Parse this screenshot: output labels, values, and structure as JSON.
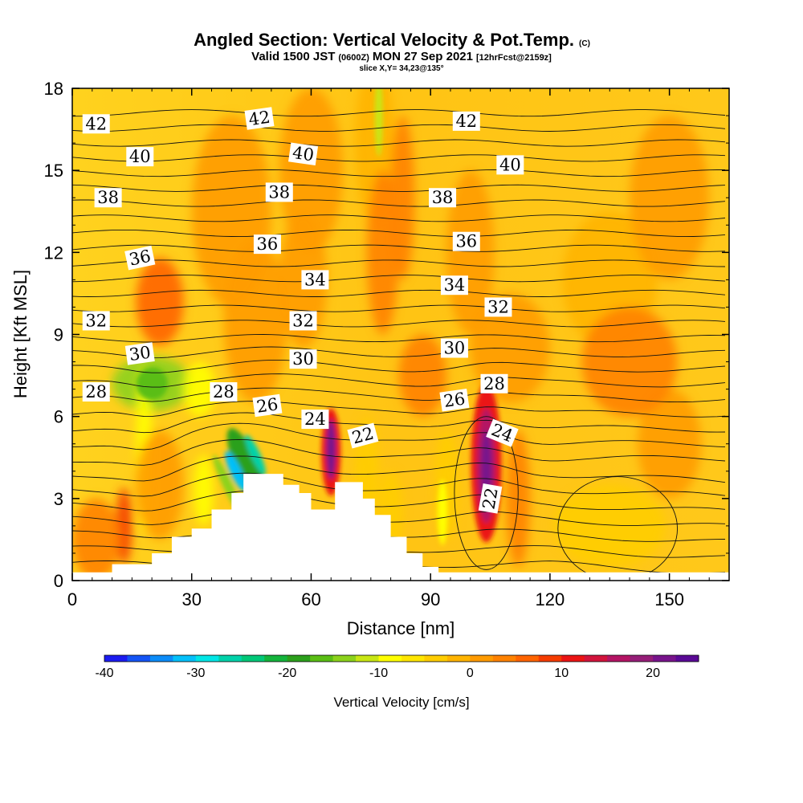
{
  "title": {
    "main": "Angled Section: Vertical Velocity & Pot.Temp.",
    "main_suffix": "(C)",
    "valid_prefix": "Valid 1500 JST",
    "valid_utc": "(0600Z)",
    "valid_date": "MON 27 Sep 2021",
    "forecast": "[12hrFcst@2159z]",
    "slice": "slice X,Y= 34,23@135°"
  },
  "chart_data": {
    "type": "heatmap",
    "xlabel": "Distance [nm]",
    "ylabel": "Height [Kft MSL]",
    "xlim": [
      0,
      165
    ],
    "ylim": [
      0,
      18
    ],
    "x_ticks": [
      0,
      30,
      60,
      90,
      120,
      150
    ],
    "y_ticks": [
      0,
      3,
      6,
      9,
      12,
      15,
      18
    ],
    "colorbar": {
      "title": "Vertical Velocity [cm/s]",
      "min": -40,
      "max": 25,
      "step": 2.5,
      "tick_values": [
        -40,
        -30,
        -20,
        -10,
        0,
        10,
        20
      ],
      "colors": [
        "#1c1cf0",
        "#1454f5",
        "#0c8cf8",
        "#04c0fa",
        "#00e6e6",
        "#00d2aa",
        "#00c878",
        "#14b43c",
        "#2ca01c",
        "#5abe14",
        "#8cd21c",
        "#c8e614",
        "#ffff00",
        "#ffe600",
        "#ffcd00",
        "#ffb400",
        "#ff9b00",
        "#ff8200",
        "#ff6400",
        "#f53c00",
        "#eb1414",
        "#d2143c",
        "#b41464",
        "#961e78",
        "#78148c",
        "#5a0a96"
      ]
    },
    "terrain_kft": [
      [
        0,
        0.3
      ],
      [
        10,
        0.6
      ],
      [
        13,
        0.6
      ],
      [
        17,
        0.6
      ],
      [
        20,
        1.0
      ],
      [
        25,
        1.6
      ],
      [
        30,
        1.9
      ],
      [
        35,
        2.6
      ],
      [
        40,
        3.2
      ],
      [
        43,
        3.9
      ],
      [
        46,
        3.9
      ],
      [
        50,
        3.9
      ],
      [
        53,
        3.5
      ],
      [
        57,
        3.2
      ],
      [
        60,
        2.6
      ],
      [
        63,
        2.6
      ],
      [
        66,
        3.6
      ],
      [
        70,
        3.6
      ],
      [
        73,
        3.0
      ],
      [
        76,
        2.4
      ],
      [
        80,
        1.6
      ],
      [
        84,
        1.0
      ],
      [
        88,
        0.5
      ],
      [
        92,
        0.3
      ],
      [
        165,
        0.3
      ]
    ],
    "theta_labels": [
      {
        "text": "42",
        "x": 6,
        "y": 16.7,
        "rot": 0
      },
      {
        "text": "42",
        "x": 47,
        "y": 16.9,
        "rot": -8
      },
      {
        "text": "42",
        "x": 99,
        "y": 16.8,
        "rot": 0
      },
      {
        "text": "40",
        "x": 17,
        "y": 15.5,
        "rot": 0
      },
      {
        "text": "40",
        "x": 58,
        "y": 15.6,
        "rot": 8
      },
      {
        "text": "40",
        "x": 110,
        "y": 15.2,
        "rot": 0
      },
      {
        "text": "38",
        "x": 9,
        "y": 14.0,
        "rot": 0
      },
      {
        "text": "38",
        "x": 52,
        "y": 14.2,
        "rot": 0
      },
      {
        "text": "38",
        "x": 93,
        "y": 14.0,
        "rot": 0
      },
      {
        "text": "36",
        "x": 17,
        "y": 11.8,
        "rot": -12
      },
      {
        "text": "36",
        "x": 49,
        "y": 12.3,
        "rot": 0
      },
      {
        "text": "36",
        "x": 99,
        "y": 12.4,
        "rot": 0
      },
      {
        "text": "34",
        "x": 61,
        "y": 11.0,
        "rot": 0
      },
      {
        "text": "34",
        "x": 96,
        "y": 10.8,
        "rot": 0
      },
      {
        "text": "32",
        "x": 6,
        "y": 9.5,
        "rot": 0
      },
      {
        "text": "32",
        "x": 58,
        "y": 9.5,
        "rot": 0
      },
      {
        "text": "32",
        "x": 107,
        "y": 10.0,
        "rot": 0
      },
      {
        "text": "30",
        "x": 17,
        "y": 8.3,
        "rot": -8
      },
      {
        "text": "30",
        "x": 58,
        "y": 8.1,
        "rot": 0
      },
      {
        "text": "30",
        "x": 96,
        "y": 8.5,
        "rot": 0
      },
      {
        "text": "28",
        "x": 6,
        "y": 6.9,
        "rot": 0
      },
      {
        "text": "28",
        "x": 38,
        "y": 6.9,
        "rot": 0
      },
      {
        "text": "28",
        "x": 106,
        "y": 7.2,
        "rot": 0
      },
      {
        "text": "26",
        "x": 49,
        "y": 6.4,
        "rot": -8
      },
      {
        "text": "26",
        "x": 96,
        "y": 6.6,
        "rot": -8
      },
      {
        "text": "24",
        "x": 61,
        "y": 5.9,
        "rot": 0
      },
      {
        "text": "24",
        "x": 108,
        "y": 5.4,
        "rot": 22
      },
      {
        "text": "22",
        "x": 73,
        "y": 5.3,
        "rot": -15
      },
      {
        "text": "22",
        "x": 105,
        "y": 3.0,
        "rot": -80
      }
    ]
  }
}
